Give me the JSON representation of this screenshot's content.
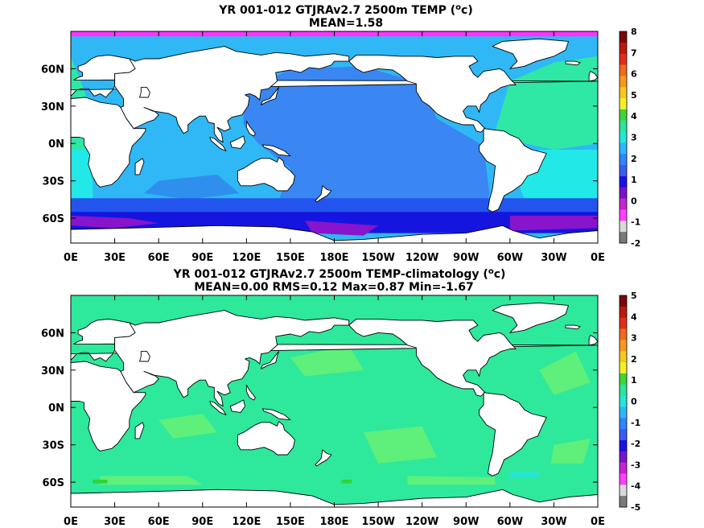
{
  "chart_data": [
    {
      "type": "heatmap",
      "title_prefix": "YR 001-012 GTJRAv2.7 2500m TEMP (",
      "title_unit_sup": "o",
      "title_unit": "c",
      "title_suffix": ")",
      "subtitle": "MEAN=1.58",
      "x_ticks": [
        "0E",
        "30E",
        "60E",
        "90E",
        "120E",
        "150E",
        "180E",
        "150W",
        "120W",
        "90W",
        "60W",
        "30W",
        "0E"
      ],
      "y_ticks": [
        "60N",
        "30N",
        "0N",
        "30S",
        "60S"
      ],
      "colorbar": {
        "ticks": [
          "8",
          "7",
          "6",
          "5",
          "4",
          "3",
          "2",
          "1",
          "0",
          "-1",
          "-2"
        ],
        "colors": [
          "#7a0a0a",
          "#b81b0d",
          "#e0301a",
          "#ef6a1d",
          "#f59a1f",
          "#f7c820",
          "#f3ef2a",
          "#3fd63a",
          "#2fe39a",
          "#25e6d4",
          "#2fb8ff",
          "#2f86ff",
          "#3a5cf2",
          "#1c10e6",
          "#7a14c9",
          "#c624cf",
          "#ff40ff",
          "#d9d9d9",
          "#7a7a7a"
        ]
      },
      "field_colors": {
        "land": "#ffffff",
        "pacific": "#3a86f2",
        "indian": "#2fb8f5",
        "indian_deep": "#2f8fee",
        "atlantic_north": "#2fe8a5",
        "atlantic_south": "#22e8e8",
        "southern_ring": "#2355ee",
        "antarctic_belt": "#1515df",
        "weddell_ross": "#8814cc",
        "arctic": "#ff33ff"
      }
    },
    {
      "type": "heatmap",
      "title_prefix": "YR 001-012 GTJRAv2.7 2500m TEMP-climatology (",
      "title_unit_sup": "o",
      "title_unit": "c",
      "title_suffix": ")",
      "subtitle": "MEAN=0.00   RMS=0.12   Max=0.87   Min=-1.67",
      "x_ticks": [
        "0E",
        "30E",
        "60E",
        "90E",
        "120E",
        "150E",
        "180E",
        "150W",
        "120W",
        "90W",
        "60W",
        "30W",
        "0E"
      ],
      "y_ticks": [
        "60N",
        "30N",
        "0N",
        "30S",
        "60S"
      ],
      "colorbar": {
        "ticks": [
          "5",
          "4",
          "3",
          "2",
          "1",
          "0",
          "-1",
          "-2",
          "-3",
          "-4",
          "-5"
        ],
        "colors": [
          "#7a0a0a",
          "#b81b0d",
          "#e0301a",
          "#ef6a1d",
          "#f59a1f",
          "#f7c820",
          "#f3ef2a",
          "#3fd63a",
          "#2fe39a",
          "#25e6d4",
          "#2fb8ff",
          "#2f86ff",
          "#3a5cf2",
          "#1c10e6",
          "#7a14c9",
          "#c624cf",
          "#ff40ff",
          "#d9d9d9",
          "#7a7a7a"
        ]
      },
      "field_colors": {
        "land": "#ffffff",
        "ocean": "#2ee89c",
        "ocean_light": "#5ef07a",
        "anomaly_pos": "#2fd33a",
        "anomaly_neg": "#25e6d4"
      }
    }
  ]
}
